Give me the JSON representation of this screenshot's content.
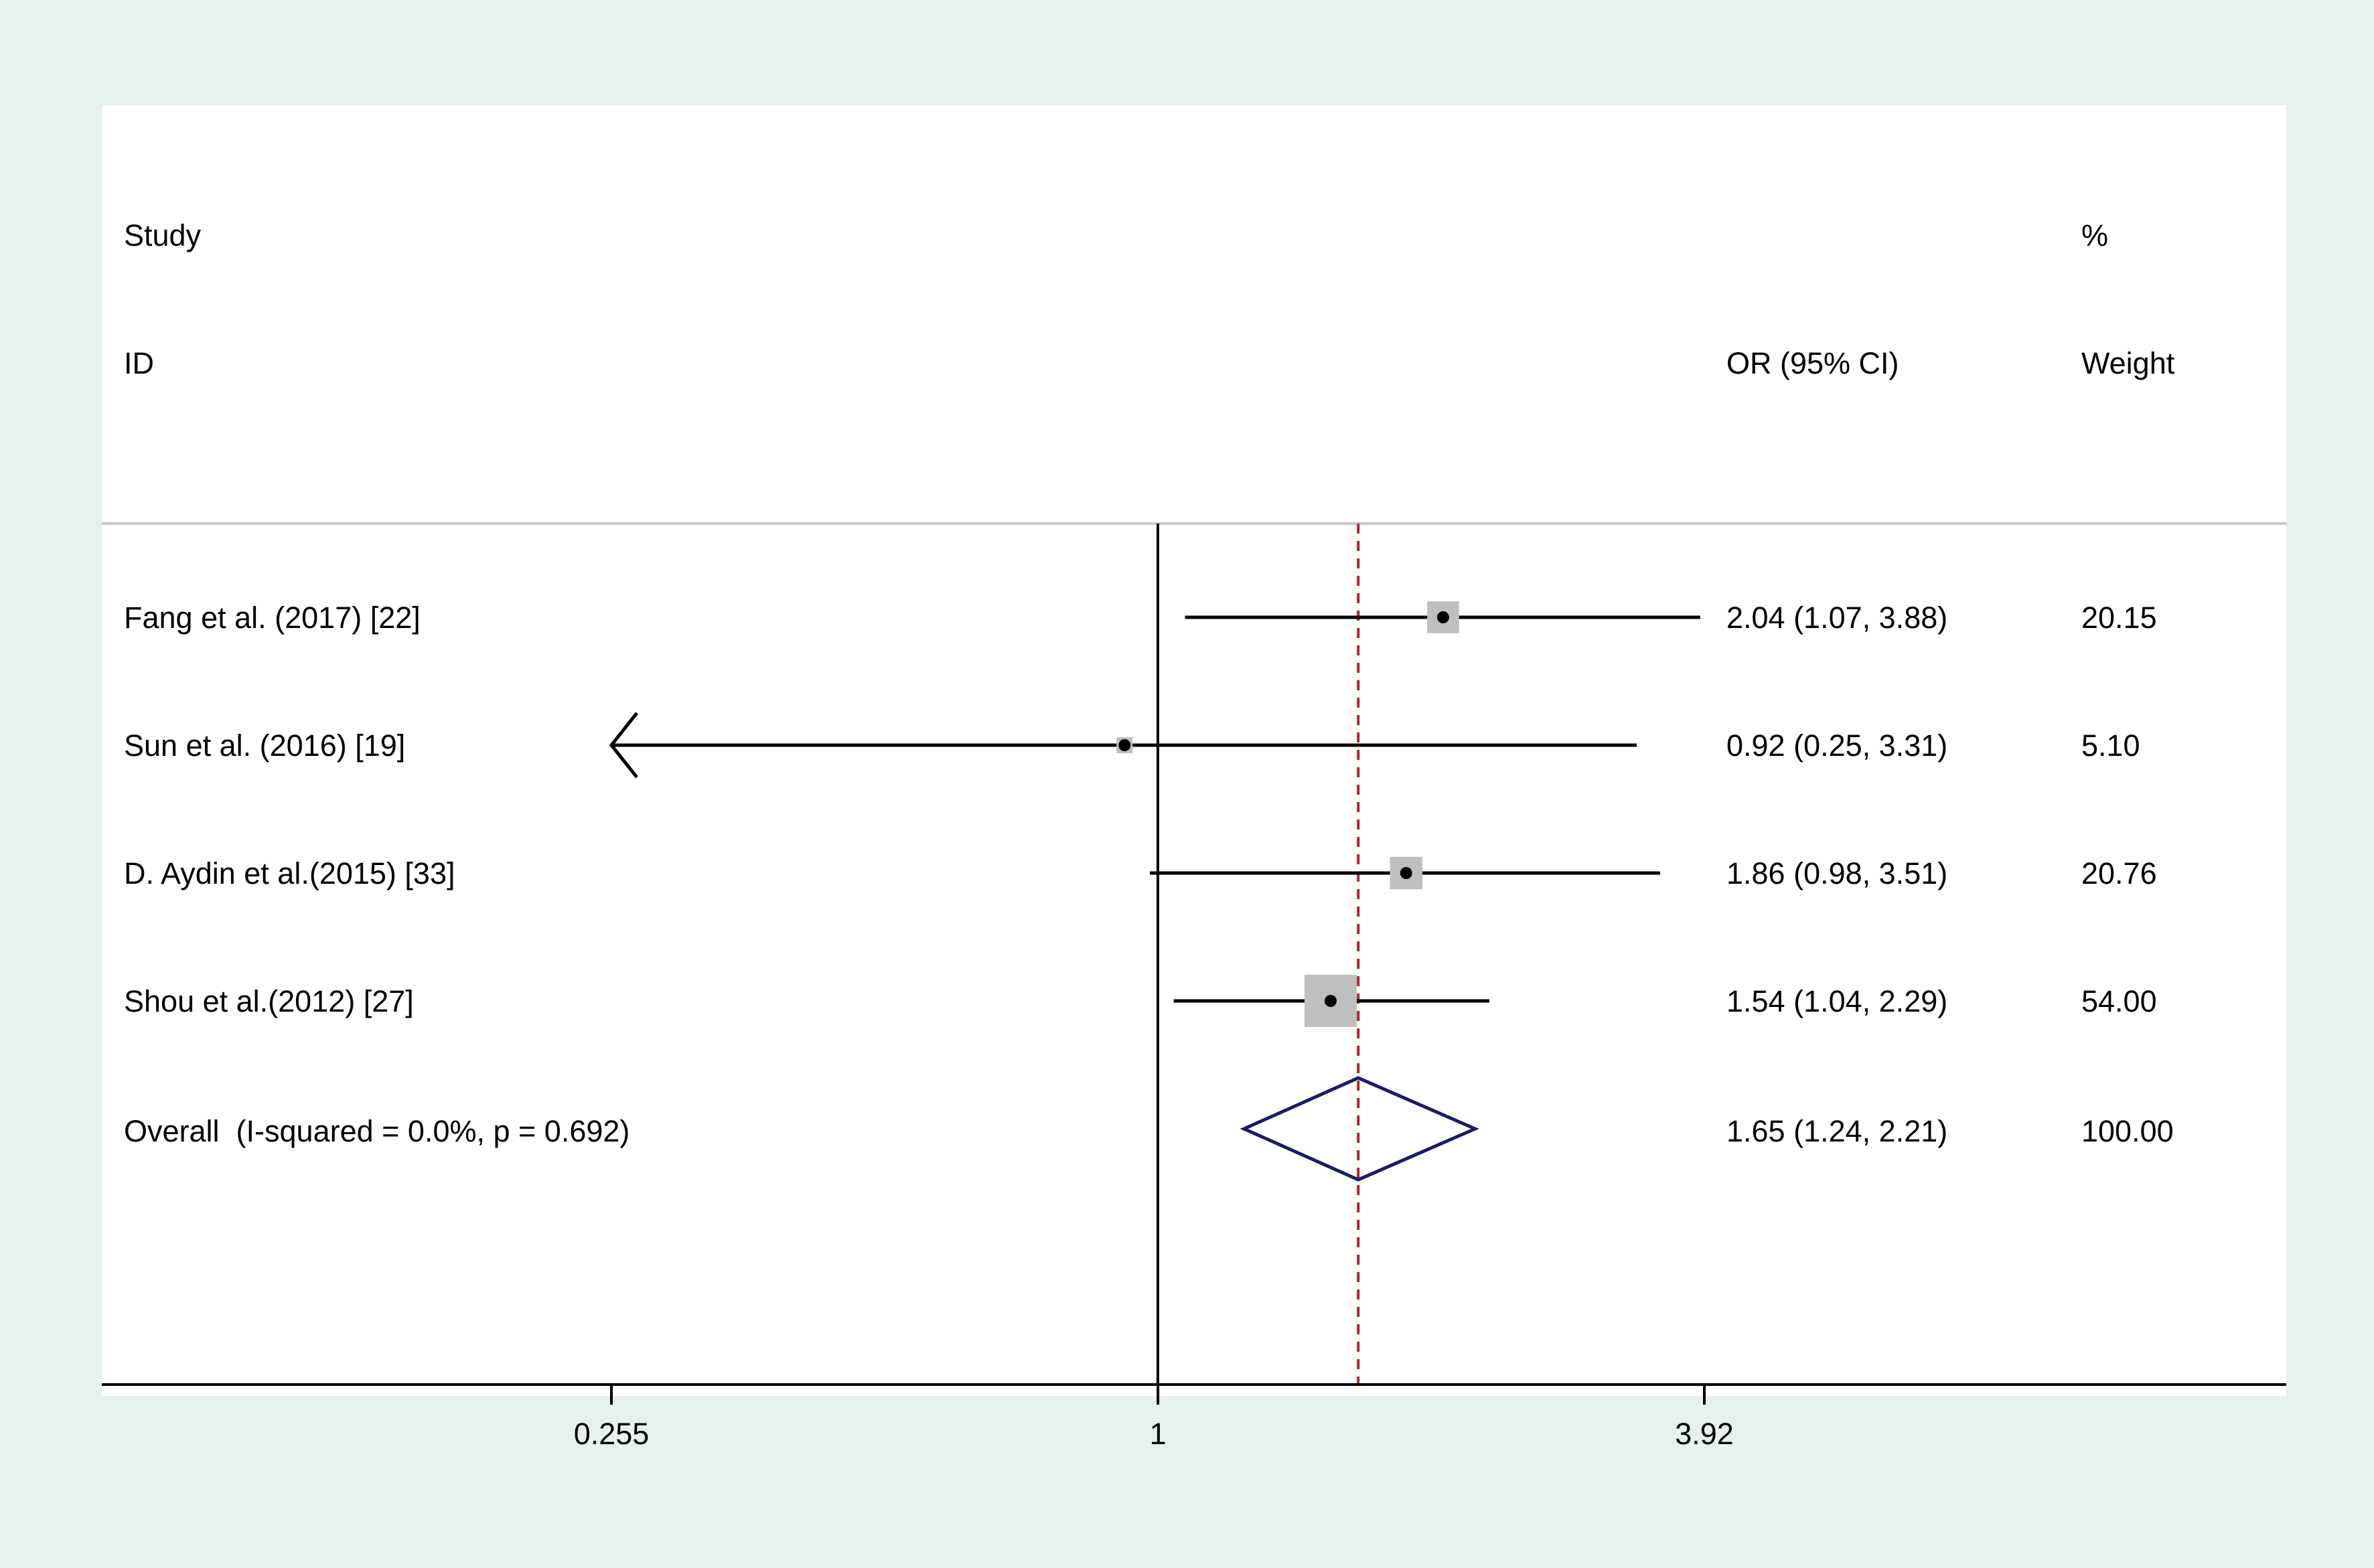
{
  "colors": {
    "outer_background": "#e6f0ef",
    "panel_background": "#ffffff",
    "ci_line": "#000000",
    "weight_box": "#bfbfbf",
    "overall_diamond": "#1a1a6e",
    "pooled_line": "#b22234",
    "divider": "#c8c8c8"
  },
  "header": {
    "col1_line1": "Study",
    "col1_line2": "ID",
    "col2_line2": "OR (95% CI)",
    "col3_line1": "%",
    "col3_line2": "Weight"
  },
  "chart_data": {
    "type": "forest",
    "x_scale": "log",
    "x_ticks": [
      0.255,
      1,
      3.92
    ],
    "x_tick_labels": [
      "0.255",
      "1",
      "3.92"
    ],
    "xlim": [
      0.255,
      3.92
    ],
    "null_value": 1,
    "pooled_estimate_line": 1.65,
    "studies": [
      {
        "label": "Fang et al. (2017) [22]",
        "or": 2.04,
        "lower": 1.07,
        "upper": 3.88,
        "ci_text": "2.04 (1.07, 3.88)",
        "weight": 20.15,
        "weight_text": "20.15"
      },
      {
        "label": "Sun et al. (2016) [19]",
        "or": 0.92,
        "lower": 0.25,
        "upper": 3.31,
        "ci_text": "0.92 (0.25, 3.31)",
        "weight": 5.1,
        "weight_text": "5.10",
        "lower_truncated": true
      },
      {
        "label": "D. Aydin et al.(2015) [33]",
        "or": 1.86,
        "lower": 0.98,
        "upper": 3.51,
        "ci_text": "1.86 (0.98, 3.51)",
        "weight": 20.76,
        "weight_text": "20.76"
      },
      {
        "label": "Shou et al.(2012) [27]",
        "or": 1.54,
        "lower": 1.04,
        "upper": 2.29,
        "ci_text": "1.54 (1.04, 2.29)",
        "weight": 54.0,
        "weight_text": "54.00"
      }
    ],
    "overall": {
      "label": "Overall  (I-squared = 0.0%, p = 0.692)",
      "or": 1.65,
      "lower": 1.24,
      "upper": 2.21,
      "ci_text": "1.65 (1.24, 2.21)",
      "weight": 100.0,
      "weight_text": "100.00"
    }
  }
}
